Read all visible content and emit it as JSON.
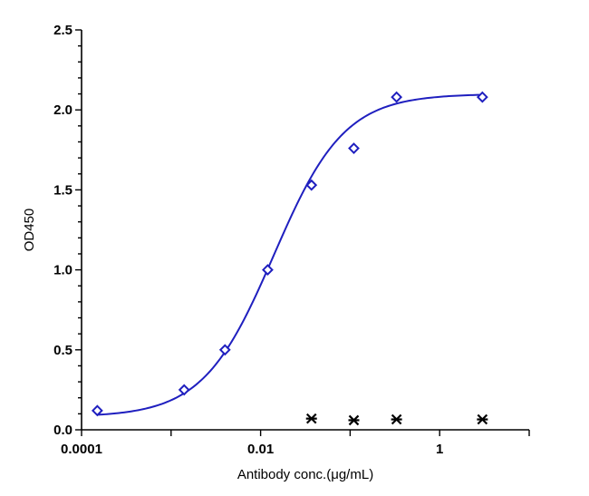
{
  "chart_data": {
    "type": "scatter",
    "title": "",
    "xlabel": "Antibody conc.(μg/mL)",
    "ylabel": "OD450",
    "xscale": "log",
    "xlim": [
      0.0001,
      10
    ],
    "ylim": [
      0,
      2.5
    ],
    "x_ticks": [
      {
        "value": 0.0001,
        "label": "0.0001"
      },
      {
        "value": 0.01,
        "label": "0.01"
      },
      {
        "value": 1,
        "label": "1"
      }
    ],
    "y_ticks": [
      {
        "value": 0,
        "label": "0.0"
      },
      {
        "value": 0.5,
        "label": "0.5"
      },
      {
        "value": 1.0,
        "label": "1.0"
      },
      {
        "value": 1.5,
        "label": "1.5"
      },
      {
        "value": 2.0,
        "label": "2.0"
      },
      {
        "value": 2.5,
        "label": "2.5"
      }
    ],
    "grid": false,
    "legend": "none",
    "series": [
      {
        "marker": "diamond",
        "color": "#1f1fbf",
        "x": [
          0.00015,
          0.0014,
          0.004,
          0.012,
          0.037,
          0.11,
          0.33,
          3.0
        ],
        "y": [
          0.12,
          0.25,
          0.5,
          1.0,
          1.53,
          1.76,
          2.08,
          2.08
        ]
      },
      {
        "marker": "star",
        "color": "#000000",
        "x": [
          0.037,
          0.11,
          0.33,
          3.0
        ],
        "y": [
          0.07,
          0.06,
          0.065,
          0.065
        ]
      }
    ],
    "fit_curve": {
      "type": "4PL",
      "color": "#1f1fbf",
      "bottom": 0.08,
      "top": 2.1,
      "ec50": 0.014,
      "hill": 1.1
    }
  }
}
